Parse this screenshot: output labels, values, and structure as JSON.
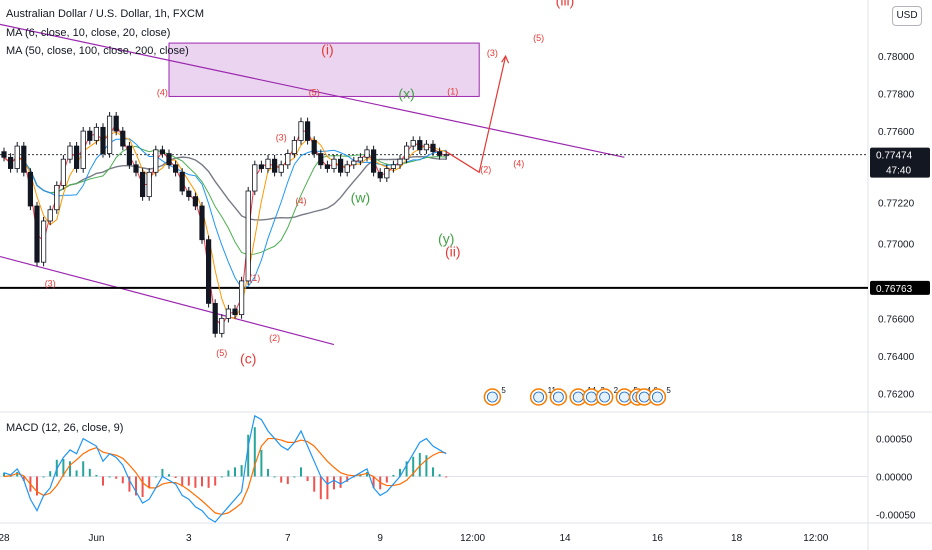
{
  "header": {
    "symbol_line": "Australian Dollar / U.S. Dollar, 1h, FXCM",
    "ma1": "MA (6, close, 10, close, 20, close)",
    "ma2": "MA (50, close, 100, close, 200, close)",
    "macd": "MACD (12, 26, close, 9)"
  },
  "currency_button": "USD",
  "colors": {
    "up_candle": "#131722",
    "down_candle": "#131722",
    "ma_red": "#f23645",
    "ma_orange": "#ff9800",
    "ma_blue": "#2196f3",
    "ma_green": "#4caf50",
    "ma_gray": "#787b86",
    "channel": "#9c27b0",
    "wave_red": "#e53935",
    "wave_green": "#43a047",
    "macd_blue": "#2196f3",
    "macd_orange": "#ff6d00",
    "hist_pos": "#26a69a",
    "hist_neg": "#ef5350",
    "last_price_bg": "#131722",
    "hline": "#000000"
  },
  "chart_data": {
    "type": "candlestick",
    "price_axis": {
      "ylim": [
        0.761,
        0.783
      ],
      "ticks": [
        "0.78000",
        "0.77800",
        "0.77600",
        "0.77220",
        "0.77000",
        "0.76600",
        "0.76400",
        "0.76200"
      ],
      "tick_values": [
        0.78,
        0.778,
        0.776,
        0.7722,
        0.77,
        0.766,
        0.764,
        0.762
      ]
    },
    "last_price": {
      "value": "0.77474",
      "countdown": "47:40"
    },
    "horizontal_level": {
      "value": "0.76763"
    },
    "time_axis": {
      "labels": [
        "28",
        "Jun",
        "3",
        "7",
        "9",
        "12:00",
        "14",
        "16",
        "18",
        "12:00"
      ],
      "bar_index": [
        0,
        14,
        28,
        43,
        57,
        71,
        85,
        99,
        111,
        123
      ]
    },
    "bars_count": 68,
    "closes": [
      0.7746,
      0.774,
      0.7752,
      0.7738,
      0.772,
      0.769,
      0.7712,
      0.7718,
      0.7731,
      0.7745,
      0.7752,
      0.774,
      0.776,
      0.7755,
      0.7762,
      0.7748,
      0.7768,
      0.776,
      0.7752,
      0.7742,
      0.7738,
      0.7725,
      0.7738,
      0.775,
      0.7748,
      0.7742,
      0.7738,
      0.7728,
      0.7725,
      0.772,
      0.7702,
      0.7668,
      0.7652,
      0.766,
      0.7665,
      0.7662,
      0.768,
      0.7728,
      0.7742,
      0.774,
      0.7745,
      0.7738,
      0.7742,
      0.7748,
      0.7755,
      0.7765,
      0.7755,
      0.7748,
      0.7742,
      0.774,
      0.7745,
      0.7738,
      0.7742,
      0.7744,
      0.7746,
      0.775,
      0.7738,
      0.7735,
      0.774,
      0.7742,
      0.7745,
      0.7752,
      0.7755,
      0.775,
      0.7753,
      0.7749,
      0.7747,
      0.77474
    ],
    "macd": {
      "ylim": [
        -0.0006,
        0.00085
      ],
      "ticks": [
        "0.00050",
        "0.00000",
        "-0.00050"
      ],
      "tick_values": [
        0.0005,
        0.0,
        -0.0005
      ],
      "macd": [
        5e-05,
        2e-05,
        0.0001,
        -5e-05,
        -0.0003,
        -0.00045,
        -0.00025,
        -0.00015,
        0.0001,
        0.00025,
        0.00035,
        0.0003,
        0.0005,
        0.00045,
        0.0004,
        0.0002,
        0.0003,
        0.00025,
        0.00015,
        -5e-05,
        -0.0002,
        -0.00035,
        -0.0003,
        -0.00015,
        0.0,
        -5e-05,
        -0.0001,
        -0.00025,
        -0.0003,
        -0.0004,
        -0.00045,
        -0.00055,
        -0.0006,
        -0.0005,
        -0.0004,
        -0.0003,
        -0.0002,
        0.0004,
        0.0008,
        0.00075,
        0.0006,
        0.0005,
        0.0004,
        0.00035,
        0.00045,
        0.0006,
        0.0004,
        0.0002,
        0.0,
        -0.0001,
        -5e-05,
        -0.0001,
        -5e-05,
        0.0,
        5e-05,
        0.0001,
        -0.00015,
        -0.00025,
        -0.0002,
        -0.0001,
        0.0,
        0.00015,
        0.0003,
        0.00045,
        0.0005,
        0.0004,
        0.00035,
        0.0003
      ],
      "signal": [
        0.0,
        1e-05,
        4e-05,
        1e-05,
        -0.0001,
        -0.0002,
        -0.00025,
        -0.00022,
        -0.00012,
        2e-05,
        0.00015,
        0.00022,
        0.0003,
        0.00035,
        0.00038,
        0.00032,
        0.0003,
        0.00028,
        0.00024,
        0.00015,
        5e-05,
        -8e-05,
        -0.00015,
        -0.00015,
        -0.0001,
        -8e-05,
        -8e-05,
        -0.00012,
        -0.00018,
        -0.00025,
        -0.00032,
        -0.0004,
        -0.00048,
        -0.0005,
        -0.00048,
        -0.00042,
        -0.00035,
        -0.00015,
        0.00015,
        0.0004,
        0.0005,
        0.0005,
        0.00048,
        0.00045,
        0.00045,
        0.00048,
        0.00046,
        0.0004,
        0.0003,
        0.0002,
        0.00012,
        5e-05,
        2e-05,
        1e-05,
        2e-05,
        4e-05,
        0.0,
        -8e-05,
        -0.00012,
        -0.00012,
        -0.0001,
        -5e-05,
        4e-05,
        0.00014,
        0.00022,
        0.00028,
        0.00032,
        0.00031
      ]
    }
  },
  "wave_labels": [
    {
      "text": "(iii)",
      "price": 0.7827,
      "bar": 85,
      "color": "red",
      "big": true
    },
    {
      "text": "(i)",
      "price": 0.7801,
      "bar": 49,
      "color": "red",
      "big": true
    },
    {
      "text": "(3)",
      "price": 0.78,
      "bar": 74,
      "color": "red"
    },
    {
      "text": "(5)",
      "price": 0.7808,
      "bar": 81,
      "color": "red"
    },
    {
      "text": "(4)",
      "price": 0.7779,
      "bar": 24,
      "color": "red"
    },
    {
      "text": "(5)",
      "price": 0.7779,
      "bar": 47,
      "color": "red"
    },
    {
      "text": "(x)",
      "price": 0.77775,
      "bar": 61,
      "color": "green",
      "big": true
    },
    {
      "text": "(1)",
      "price": 0.77795,
      "bar": 68,
      "color": "red"
    },
    {
      "text": "(3)",
      "price": 0.7755,
      "bar": 42,
      "color": "red"
    },
    {
      "text": "(4)",
      "price": 0.7721,
      "bar": 45,
      "color": "red"
    },
    {
      "text": "(w)",
      "price": 0.7722,
      "bar": 54,
      "color": "green",
      "big": true
    },
    {
      "text": "(4)",
      "price": 0.7741,
      "bar": 78,
      "color": "red"
    },
    {
      "text": "(2)",
      "price": 0.7738,
      "bar": 73,
      "color": "red"
    },
    {
      "text": "(y)",
      "price": 0.77,
      "bar": 67,
      "color": "green",
      "big": true
    },
    {
      "text": "(ii)",
      "price": 0.7693,
      "bar": 68,
      "color": "red",
      "big": true
    },
    {
      "text": "(3)",
      "price": 0.7677,
      "bar": 7,
      "color": "red"
    },
    {
      "text": "(1)",
      "price": 0.768,
      "bar": 38,
      "color": "red"
    },
    {
      "text": "(2)",
      "price": 0.7648,
      "bar": 41,
      "color": "red"
    },
    {
      "text": "(5)",
      "price": 0.764,
      "bar": 33,
      "color": "red"
    },
    {
      "text": "(c)",
      "price": 0.7636,
      "bar": 37,
      "color": "red",
      "big": true
    }
  ],
  "event_icons": [
    {
      "bar": 74,
      "count": "5"
    },
    {
      "bar": 81,
      "count": "11"
    },
    {
      "bar": 84,
      "count": ""
    },
    {
      "bar": 87,
      "count": "14"
    },
    {
      "bar": 89,
      "count": "3"
    },
    {
      "bar": 91,
      "count": "2"
    },
    {
      "bar": 94,
      "count": "5"
    },
    {
      "bar": 96,
      "count": "4"
    },
    {
      "bar": 97,
      "count": "6"
    },
    {
      "bar": 99,
      "count": "5"
    }
  ]
}
